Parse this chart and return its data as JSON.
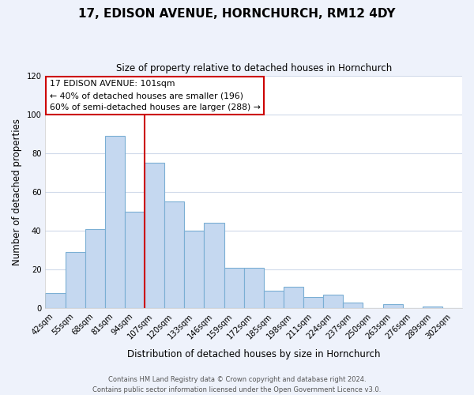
{
  "title": "17, EDISON AVENUE, HORNCHURCH, RM12 4DY",
  "subtitle": "Size of property relative to detached houses in Hornchurch",
  "xlabel": "Distribution of detached houses by size in Hornchurch",
  "ylabel": "Number of detached properties",
  "bar_labels": [
    "42sqm",
    "55sqm",
    "68sqm",
    "81sqm",
    "94sqm",
    "107sqm",
    "120sqm",
    "133sqm",
    "146sqm",
    "159sqm",
    "172sqm",
    "185sqm",
    "198sqm",
    "211sqm",
    "224sqm",
    "237sqm",
    "250sqm",
    "263sqm",
    "276sqm",
    "289sqm",
    "302sqm"
  ],
  "bar_values": [
    8,
    29,
    41,
    89,
    50,
    75,
    55,
    40,
    44,
    21,
    21,
    9,
    11,
    6,
    7,
    3,
    0,
    2,
    0,
    1,
    0
  ],
  "bar_color": "#c5d8f0",
  "bar_edge_color": "#7bafd4",
  "vline_index": 5,
  "vline_color": "#cc0000",
  "ylim": [
    0,
    120
  ],
  "yticks": [
    0,
    20,
    40,
    60,
    80,
    100,
    120
  ],
  "annotation_title": "17 EDISON AVENUE: 101sqm",
  "annotation_line1": "← 40% of detached houses are smaller (196)",
  "annotation_line2": "60% of semi-detached houses are larger (288) →",
  "annotation_box_color": "#ffffff",
  "annotation_box_edge": "#cc0000",
  "footer_line1": "Contains HM Land Registry data © Crown copyright and database right 2024.",
  "footer_line2": "Contains public sector information licensed under the Open Government Licence v3.0.",
  "background_color": "#eef2fb",
  "plot_background": "#ffffff",
  "grid_color": "#d0daea"
}
